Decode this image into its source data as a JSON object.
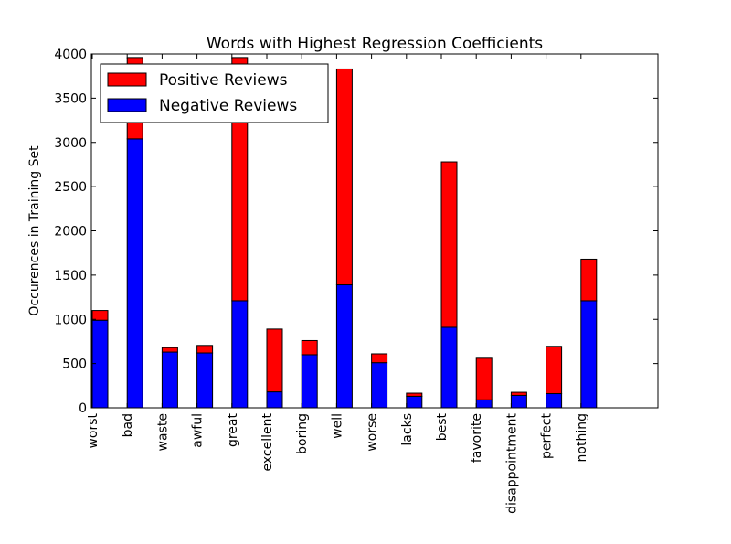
{
  "chart_data": {
    "type": "bar",
    "stacked": true,
    "title": "Words with Highest Regression Coefficients",
    "xlabel": "",
    "ylabel": "Occurences in Training Set",
    "ylim": [
      0,
      4000
    ],
    "yticks": [
      0,
      500,
      1000,
      1500,
      2000,
      2500,
      3000,
      3500,
      4000
    ],
    "grid": false,
    "legend_position": "top-left",
    "categories": [
      "worst",
      "bad",
      "waste",
      "awful",
      "great",
      "excellent",
      "boring",
      "well",
      "worse",
      "lacks",
      "best",
      "favorite",
      "disappointment",
      "perfect",
      "nothing"
    ],
    "series": [
      {
        "name": "Negative Reviews",
        "color": "#0000ff",
        "values": [
          990,
          3040,
          630,
          620,
          1210,
          180,
          600,
          1390,
          510,
          130,
          910,
          90,
          140,
          160,
          1210
        ]
      },
      {
        "name": "Positive Reviews",
        "color": "#ff0000",
        "values": [
          110,
          920,
          50,
          85,
          2750,
          710,
          160,
          2440,
          100,
          35,
          1870,
          470,
          35,
          535,
          470
        ]
      }
    ],
    "legend": [
      {
        "label": "Positive Reviews",
        "color": "#ff0000"
      },
      {
        "label": "Negative Reviews",
        "color": "#0000ff"
      }
    ]
  }
}
